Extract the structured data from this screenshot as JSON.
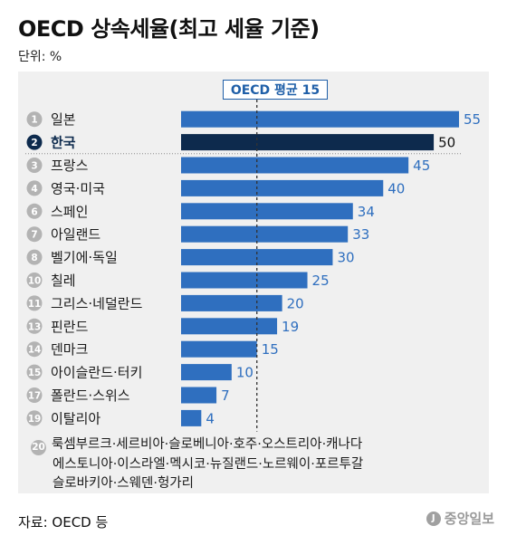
{
  "title": "OECD 상속세율(최고 세율 기준)",
  "unit": "단위: %",
  "avg_label": "OECD 평균 15",
  "source": "자료: OECD 등",
  "logo_text": "중앙일보",
  "colors": {
    "bar": "#2f6fbf",
    "highlight_bar": "#0d2a4d",
    "avg_line": "#333333",
    "badge": "#b3b3b3",
    "value_text": "#2f6fbf",
    "panel": "#f0f0f0"
  },
  "chart_data": {
    "type": "bar",
    "orientation": "horizontal",
    "xlim": [
      0,
      55
    ],
    "average": 15,
    "highlight": "한국",
    "categories": [
      "일본",
      "한국",
      "프랑스",
      "영국·미국",
      "스페인",
      "아일랜드",
      "벨기에·독일",
      "칠레",
      "그리스·네덜란드",
      "핀란드",
      "덴마크",
      "아이슬란드·터키",
      "폴란드·스위스",
      "이탈리아"
    ],
    "ranks": [
      "1",
      "2",
      "3",
      "4",
      "6",
      "7",
      "8",
      "10",
      "11",
      "13",
      "14",
      "15",
      "17",
      "19"
    ],
    "values": [
      55,
      50,
      45,
      40,
      34,
      33,
      30,
      25,
      20,
      19,
      15,
      10,
      7,
      4
    ]
  },
  "footnote": {
    "rank": "20",
    "lines": [
      "룩셈부르크·세르비아·슬로베니아·호주·오스트리아·캐나다",
      "에스토니아·이스라엘·멕시코·뉴질랜드·노르웨이·포르투갈",
      "슬로바키아·스웨덴·헝가리"
    ]
  }
}
